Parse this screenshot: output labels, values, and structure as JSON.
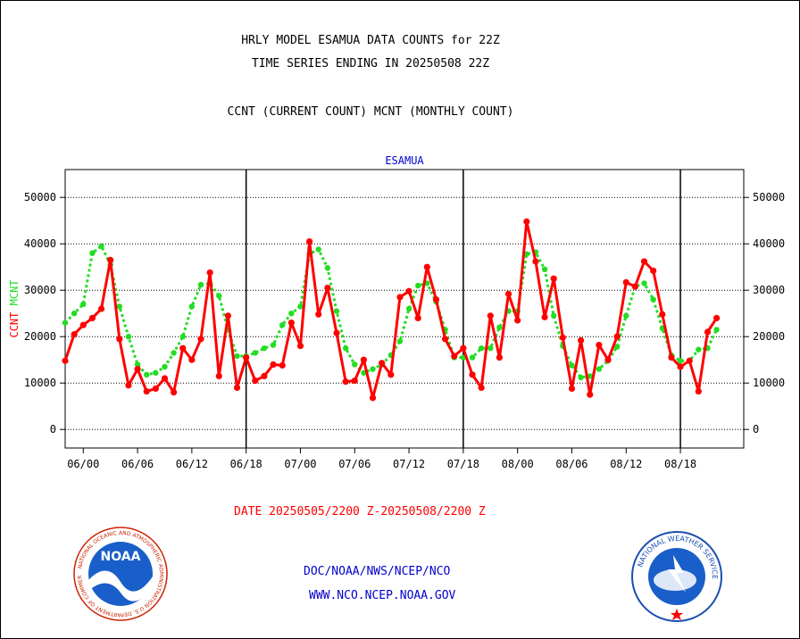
{
  "header": {
    "line1": "HRLY MODEL ESAMUA DATA COUNTS for 22Z",
    "line2": "TIME SERIES ENDING IN 20250508 22Z",
    "line3": "CCNT (CURRENT COUNT) MCNT (MONTHLY COUNT)"
  },
  "colors": {
    "ccnt": "#ff0000",
    "mcnt": "#22dd22",
    "station": "#0000cc",
    "footer_red": "#ff0000",
    "footer_blue": "#0000cc"
  },
  "chart_data": {
    "type": "line",
    "title": "ESAMUA",
    "ylabel_parts": [
      {
        "text": "CCNT",
        "color": "#ff0000"
      },
      {
        "text": "MCNT",
        "color": "#22dd22"
      }
    ],
    "ylim": [
      -4000,
      56000
    ],
    "yticks": [
      0,
      10000,
      20000,
      30000,
      40000,
      50000
    ],
    "ytick_labels": [
      "0",
      "10000",
      "20000",
      "30000",
      "40000",
      "50000"
    ],
    "xlim": [
      0,
      75
    ],
    "xtick_positions": [
      2,
      8,
      14,
      20,
      26,
      32,
      38,
      44,
      50,
      56,
      62,
      68
    ],
    "xtick_labels": [
      "06/00",
      "06/06",
      "06/12",
      "06/18",
      "07/00",
      "07/06",
      "07/12",
      "07/18",
      "08/00",
      "08/06",
      "08/12",
      "08/18"
    ],
    "day_dividers": [
      20,
      44,
      68
    ],
    "grid": true,
    "series": [
      {
        "name": "CCNT",
        "color": "#ff0000",
        "style": "solid",
        "values": [
          14800,
          20500,
          22500,
          24000,
          26000,
          36500,
          19500,
          9500,
          13000,
          8200,
          8800,
          11000,
          8000,
          17500,
          15000,
          19500,
          33800,
          11500,
          24500,
          9000,
          15500,
          10500,
          11500,
          14000,
          13800,
          23000,
          18000,
          40500,
          24800,
          30500,
          20800,
          10300,
          10500,
          15000,
          6800,
          14300,
          11800,
          28500,
          29800,
          24000,
          35000,
          28000,
          19500,
          15800,
          17500,
          11800,
          9000,
          24500,
          15500,
          29200,
          23500,
          44800,
          36200,
          24200,
          32500,
          19800,
          8800,
          19200,
          7500,
          18200,
          15000,
          20000,
          31700,
          30800,
          36200,
          34200,
          24800,
          15500,
          13500,
          14800,
          8200,
          21000,
          24000
        ]
      },
      {
        "name": "MCNT",
        "color": "#22dd22",
        "style": "dotted",
        "values": [
          23000,
          25000,
          27000,
          38000,
          39500,
          35500,
          26500,
          20000,
          14000,
          11800,
          12200,
          13500,
          16500,
          20000,
          26500,
          31200,
          31500,
          28800,
          21500,
          15800,
          15800,
          16500,
          17500,
          18200,
          22500,
          25000,
          26500,
          37800,
          38800,
          34800,
          25500,
          17500,
          14000,
          12200,
          13000,
          14000,
          16000,
          19000,
          26000,
          31000,
          31500,
          27500,
          21500,
          15500,
          15500,
          15500,
          17500,
          17500,
          22000,
          25500,
          25500,
          37800,
          38200,
          34500,
          24500,
          18000,
          13800,
          11200,
          11500,
          13000,
          14800,
          17800,
          24500,
          30800,
          31500,
          28000,
          21800,
          16000,
          14800,
          14800,
          17200,
          17500,
          21500
        ]
      }
    ]
  },
  "footer": {
    "date_range": "DATE 20250505/2200 Z-20250508/2200 Z",
    "org_path": "DOC/NOAA/NWS/NCEP/NCO",
    "website": "WWW.NCO.NCEP.NOAA.GOV",
    "noaa_logo_text": "NOAA",
    "noaa_ring_text": "NATIONAL OCEANIC AND ATMOSPHERIC ADMINISTRATION  U.S. DEPARTMENT OF COMMERCE",
    "nws_ring_text": "NATIONAL WEATHER SERVICE"
  }
}
